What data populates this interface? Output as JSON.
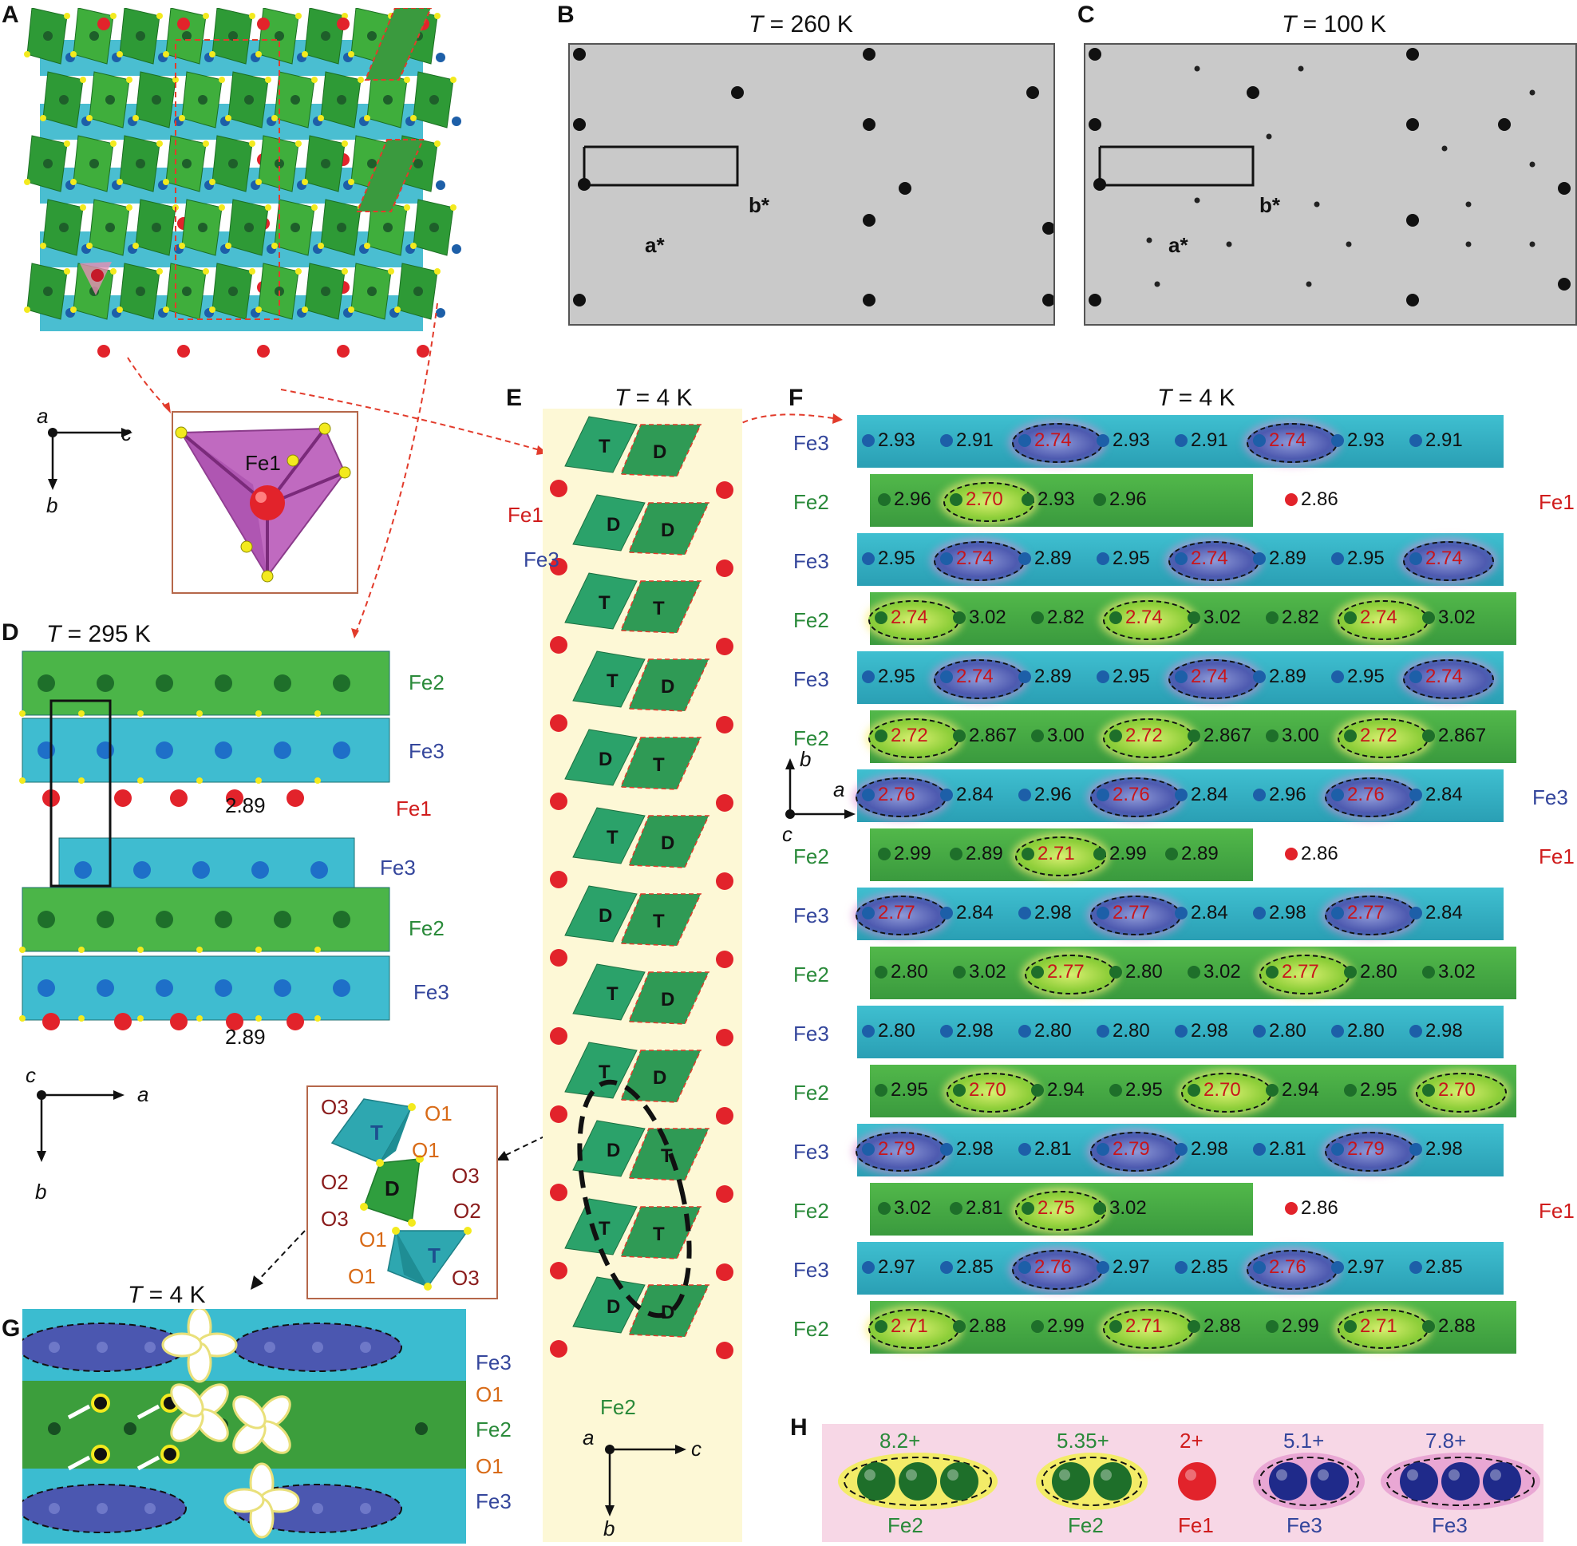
{
  "panels": {
    "A": {
      "label": "A",
      "axes": {
        "a": "a",
        "c": "c",
        "b": "b"
      },
      "inset_atom": "Fe1"
    },
    "B": {
      "label": "B",
      "title_T": "T",
      "title_rest": " = 260 K",
      "astar": "a*",
      "bstar": "b*"
    },
    "C": {
      "label": "C",
      "title_T": "T",
      "title_rest": " = 100 K",
      "astar": "a*",
      "bstar": "b*"
    },
    "D": {
      "label": "D",
      "title_T": "T",
      "title_rest": " = 295 K",
      "layers": [
        "Fe2",
        "Fe3",
        "Fe1",
        "Fe3",
        "Fe2",
        "Fe3"
      ],
      "distances": [
        "2.89",
        "2.89"
      ],
      "axes": {
        "c": "c",
        "a": "a",
        "b": "b"
      }
    },
    "E": {
      "label": "E",
      "title_T": "T",
      "title_rest": " = 4 K",
      "octa_labels": [
        "T",
        "D",
        "D",
        "D",
        "T",
        "T",
        "T",
        "D",
        "D",
        "T",
        "T",
        "D",
        "D",
        "T",
        "T",
        "D",
        "T",
        "D",
        "D",
        "T",
        "T",
        "T",
        "D",
        "D"
      ],
      "side_labels": {
        "fe1": "Fe1",
        "fe3": "Fe3",
        "fe2": "Fe2"
      },
      "axes": {
        "a": "a",
        "c": "c",
        "b": "b"
      },
      "inset": {
        "labels": [
          "O3",
          "O1",
          "O1",
          "O2",
          "O3",
          "O2",
          "O3",
          "O1",
          "O1",
          "O3"
        ],
        "T1": "T",
        "D": "D",
        "T2": "T"
      }
    },
    "F": {
      "label": "F",
      "title_T": "T",
      "title_rest": " = 4 K",
      "axes": {
        "b": "b",
        "a": "a",
        "c": "c"
      },
      "rows": [
        {
          "left": "Fe3",
          "right": "",
          "nums": [
            [
              "2.93",
              "k"
            ],
            [
              "2.91",
              "k"
            ],
            [
              "2.74",
              "r"
            ],
            [
              "2.93",
              "k"
            ],
            [
              "2.91",
              "k"
            ],
            [
              "2.74",
              "r"
            ],
            [
              "2.93",
              "k"
            ],
            [
              "2.91",
              "k"
            ]
          ]
        },
        {
          "left": "Fe2",
          "right": "Fe1",
          "nums": [
            [
              "2.96",
              "k"
            ],
            [
              "2.70",
              "r"
            ],
            [
              "2.93",
              "k"
            ],
            [
              "2.96",
              "k"
            ],
            [
              "2.86",
              "k"
            ]
          ]
        },
        {
          "left": "Fe3",
          "right": "",
          "nums": [
            [
              "2.95",
              "k"
            ],
            [
              "2.74",
              "r"
            ],
            [
              "2.89",
              "k"
            ],
            [
              "2.95",
              "k"
            ],
            [
              "2.74",
              "r"
            ],
            [
              "2.89",
              "k"
            ],
            [
              "2.95",
              "k"
            ],
            [
              "2.74",
              "r"
            ]
          ]
        },
        {
          "left": "Fe2",
          "right": "",
          "nums": [
            [
              "2.74",
              "r"
            ],
            [
              "3.02",
              "k"
            ],
            [
              "2.82",
              "k"
            ],
            [
              "2.74",
              "r"
            ],
            [
              "3.02",
              "k"
            ],
            [
              "2.82",
              "k"
            ],
            [
              "2.74",
              "r"
            ],
            [
              "3.02",
              "k"
            ]
          ]
        },
        {
          "left": "Fe3",
          "right": "",
          "nums": [
            [
              "2.95",
              "k"
            ],
            [
              "2.74",
              "r"
            ],
            [
              "2.89",
              "k"
            ],
            [
              "2.95",
              "k"
            ],
            [
              "2.74",
              "r"
            ],
            [
              "2.89",
              "k"
            ],
            [
              "2.95",
              "k"
            ],
            [
              "2.74",
              "r"
            ]
          ]
        },
        {
          "left": "Fe2",
          "right": "",
          "nums": [
            [
              "2.72",
              "r"
            ],
            [
              "2.867",
              "k"
            ],
            [
              "3.00",
              "k"
            ],
            [
              "2.72",
              "r"
            ],
            [
              "2.867",
              "k"
            ],
            [
              "3.00",
              "k"
            ],
            [
              "2.72",
              "r"
            ],
            [
              "2.867",
              "k"
            ]
          ]
        },
        {
          "left": "",
          "right": "Fe3",
          "nums": [
            [
              "2.76",
              "r"
            ],
            [
              "2.84",
              "k"
            ],
            [
              "2.96",
              "k"
            ],
            [
              "2.76",
              "r"
            ],
            [
              "2.84",
              "k"
            ],
            [
              "2.96",
              "k"
            ],
            [
              "2.76",
              "r"
            ],
            [
              "2.84",
              "k"
            ]
          ]
        },
        {
          "left": "Fe2",
          "right": "Fe1",
          "nums": [
            [
              "2.99",
              "k"
            ],
            [
              "2.89",
              "k"
            ],
            [
              "2.71",
              "r"
            ],
            [
              "2.99",
              "k"
            ],
            [
              "2.89",
              "k"
            ],
            [
              "2.86",
              "k"
            ]
          ]
        },
        {
          "left": "Fe3",
          "right": "",
          "nums": [
            [
              "2.77",
              "r"
            ],
            [
              "2.84",
              "k"
            ],
            [
              "2.98",
              "k"
            ],
            [
              "2.77",
              "r"
            ],
            [
              "2.84",
              "k"
            ],
            [
              "2.98",
              "k"
            ],
            [
              "2.77",
              "r"
            ],
            [
              "2.84",
              "k"
            ]
          ]
        },
        {
          "left": "Fe2",
          "right": "",
          "nums": [
            [
              "2.80",
              "k"
            ],
            [
              "3.02",
              "k"
            ],
            [
              "2.77",
              "r"
            ],
            [
              "2.80",
              "k"
            ],
            [
              "3.02",
              "k"
            ],
            [
              "2.77",
              "r"
            ],
            [
              "2.80",
              "k"
            ],
            [
              "3.02",
              "k"
            ]
          ]
        },
        {
          "left": "Fe3",
          "right": "",
          "nums": [
            [
              "2.80",
              "k"
            ],
            [
              "2.98",
              "k"
            ],
            [
              "2.80",
              "k"
            ],
            [
              "2.80",
              "k"
            ],
            [
              "2.98",
              "k"
            ],
            [
              "2.80",
              "k"
            ],
            [
              "2.80",
              "k"
            ],
            [
              "2.98",
              "k"
            ]
          ]
        },
        {
          "left": "Fe2",
          "right": "",
          "nums": [
            [
              "2.95",
              "k"
            ],
            [
              "2.70",
              "r"
            ],
            [
              "2.94",
              "k"
            ],
            [
              "2.95",
              "k"
            ],
            [
              "2.70",
              "r"
            ],
            [
              "2.94",
              "k"
            ],
            [
              "2.95",
              "k"
            ],
            [
              "2.70",
              "r"
            ]
          ]
        },
        {
          "left": "Fe3",
          "right": "",
          "nums": [
            [
              "2.79",
              "r"
            ],
            [
              "2.98",
              "k"
            ],
            [
              "2.81",
              "k"
            ],
            [
              "2.79",
              "r"
            ],
            [
              "2.98",
              "k"
            ],
            [
              "2.81",
              "k"
            ],
            [
              "2.79",
              "r"
            ],
            [
              "2.98",
              "k"
            ]
          ]
        },
        {
          "left": "Fe2",
          "right": "Fe1",
          "nums": [
            [
              "3.02",
              "k"
            ],
            [
              "2.81",
              "k"
            ],
            [
              "2.75",
              "r"
            ],
            [
              "3.02",
              "k"
            ],
            [
              "2.86",
              "k"
            ]
          ]
        },
        {
          "left": "Fe3",
          "right": "",
          "nums": [
            [
              "2.97",
              "k"
            ],
            [
              "2.85",
              "k"
            ],
            [
              "2.76",
              "r"
            ],
            [
              "2.97",
              "k"
            ],
            [
              "2.85",
              "k"
            ],
            [
              "2.76",
              "r"
            ],
            [
              "2.97",
              "k"
            ],
            [
              "2.85",
              "k"
            ]
          ]
        },
        {
          "left": "Fe2",
          "right": "",
          "nums": [
            [
              "2.71",
              "r"
            ],
            [
              "2.88",
              "k"
            ],
            [
              "2.99",
              "k"
            ],
            [
              "2.71",
              "r"
            ],
            [
              "2.88",
              "k"
            ],
            [
              "2.99",
              "k"
            ],
            [
              "2.71",
              "r"
            ],
            [
              "2.88",
              "k"
            ]
          ]
        }
      ]
    },
    "G": {
      "label": "G",
      "title_T": "T",
      "title_rest": " = 4 K",
      "side": [
        "Fe3",
        "O1",
        "Fe2",
        "O1",
        "Fe3"
      ]
    },
    "H": {
      "label": "H",
      "items": [
        {
          "charge": "8.2+",
          "name": "Fe2"
        },
        {
          "charge": "5.35+",
          "name": "Fe2"
        },
        {
          "charge": "2+",
          "name": "Fe1"
        },
        {
          "charge": "5.1+",
          "name": "Fe3"
        },
        {
          "charge": "7.8+",
          "name": "Fe3"
        }
      ]
    }
  },
  "colors": {
    "fe2": "#2a8a3a",
    "fe3": "#34469c",
    "fe1": "#d01c1c",
    "o1": "#d86a16",
    "red_value": "#c8151b"
  }
}
